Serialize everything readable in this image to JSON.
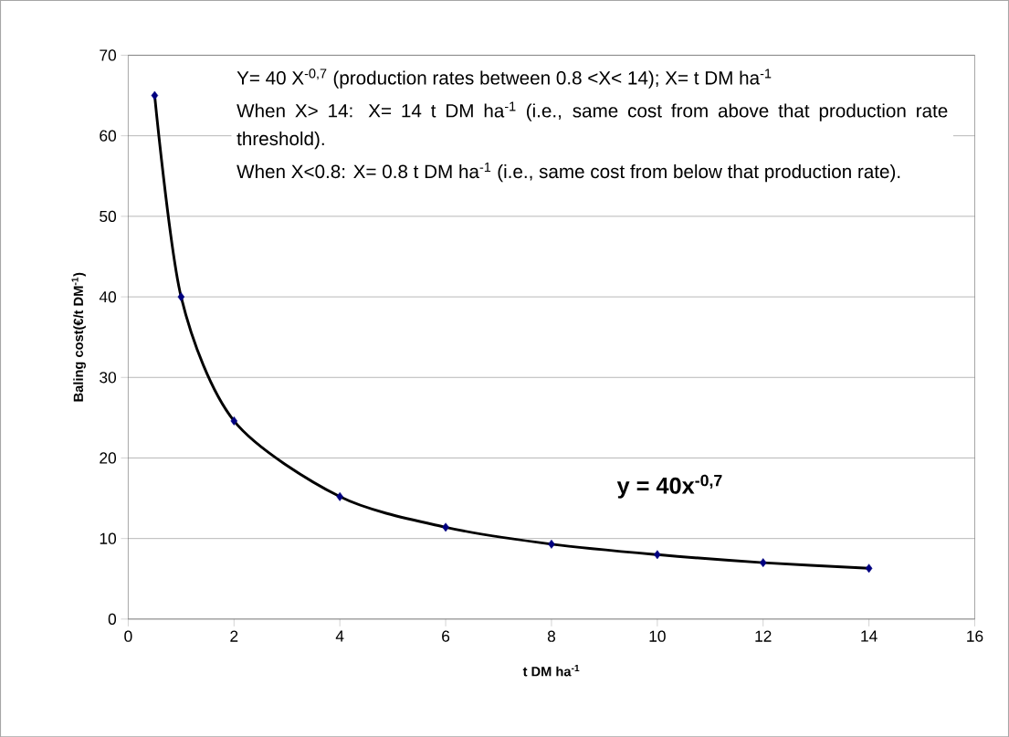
{
  "chart_data": {
    "type": "scatter",
    "xlabel": "t DM ha$^{-1}$",
    "ylabel": "Baling cost(€/t DM$^{-1}$)",
    "series": [
      {
        "type": "line",
        "color": "#000000",
        "marker": "none",
        "x": [
          0.5,
          1,
          2,
          4,
          6,
          8,
          10,
          12,
          14
        ],
        "values": [
          65.0,
          40.0,
          24.6,
          15.2,
          11.4,
          9.3,
          8.0,
          7.0,
          6.3
        ]
      },
      {
        "color": "#000080",
        "marker": "diamond",
        "x": [
          0.5,
          1,
          2,
          4,
          6,
          8,
          10,
          12,
          14
        ],
        "values": [
          65.0,
          40.0,
          24.6,
          15.2,
          11.4,
          9.3,
          8.0,
          7.0,
          6.3
        ]
      }
    ],
    "xlim": [
      0,
      16
    ],
    "xticks": [
      0,
      2,
      4,
      6,
      8,
      10,
      12,
      14,
      16
    ],
    "ylim": [
      0,
      70
    ],
    "yticks": [
      0,
      10,
      20,
      30,
      40,
      50,
      60,
      70
    ],
    "grid": "y",
    "annotations": [
      "Y= 40 X$^{-0,7}$ (production rates between 0.8 <X< 14); X= t DM ha$^{-1}$",
      "When X> 14: X= 14 t DM ha$^{-1}$ (i.e., same cost from above that production rate threshold).",
      "When X<0.8: X= 0.8 t DM ha$^{-1}$ (i.e., same cost from below that production rate).",
      "y = 40x$^{-0,7}$"
    ]
  }
}
